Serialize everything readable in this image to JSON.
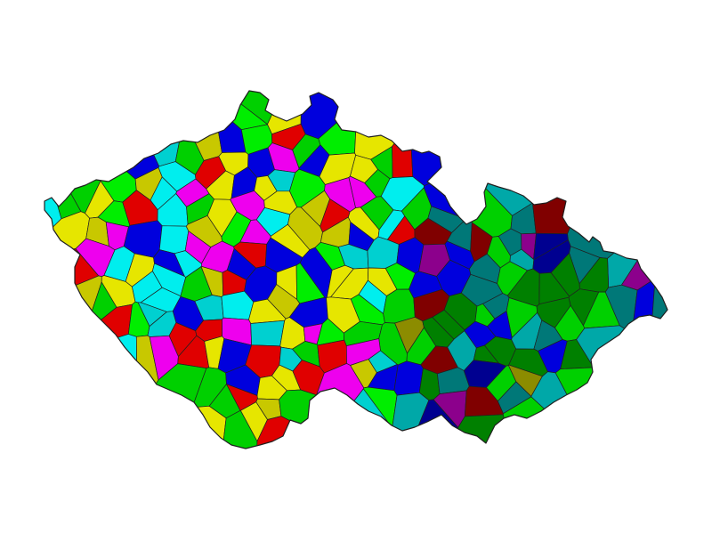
{
  "palette": {
    "yellow": "#e6e600",
    "red": "#e00000",
    "green": "#00d000",
    "bright_green": "#00ee00",
    "blue": "#0000dd",
    "magenta": "#ee00ee",
    "cyan": "#00d0d0",
    "bright_cyan": "#00eeee",
    "olive_yellow": "#c8c800",
    "teal": "#00a8a8",
    "navy": "#000090",
    "maroon": "#800000",
    "dark_green": "#008000",
    "purple": "#8c008c",
    "olive": "#8c8c00",
    "dark_teal": "#007878",
    "outline": "#202020",
    "background": "#ffffff"
  },
  "map": {
    "subject": "districts",
    "region_count_estimate": 206
  }
}
